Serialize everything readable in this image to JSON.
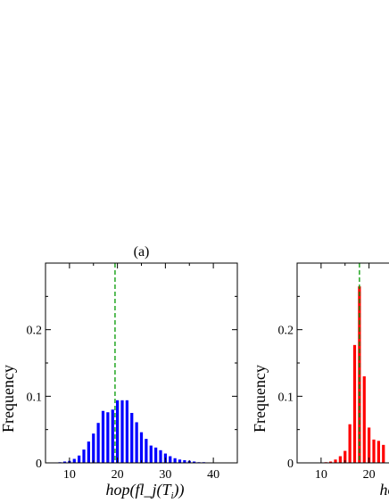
{
  "chart_data": [
    {
      "type": "bar",
      "panel_label": "(a)",
      "xlabel": "hop(fl_j(T",
      "xlabel_sub": "i",
      "xlabel_close": "))",
      "ylabel": "Frequency",
      "xlim": [
        5,
        45
      ],
      "ylim": [
        0,
        0.3
      ],
      "xticks": [
        10,
        20,
        30,
        40
      ],
      "yticks": [
        0,
        0.1,
        0.2
      ],
      "ytick_labels": [
        "0",
        "0.1",
        "0.2"
      ],
      "reference_line_x": 19.5,
      "bar_color": "#0000ff",
      "reference_line_color": "#009900",
      "x": [
        8,
        9,
        10,
        11,
        12,
        13,
        14,
        15,
        16,
        17,
        18,
        19,
        20,
        21,
        22,
        23,
        24,
        25,
        26,
        27,
        28,
        29,
        30,
        31,
        32,
        33,
        34,
        35,
        36,
        37,
        38,
        39,
        40
      ],
      "values": [
        0.001,
        0.002,
        0.003,
        0.006,
        0.011,
        0.02,
        0.032,
        0.044,
        0.06,
        0.078,
        0.076,
        0.08,
        0.094,
        0.094,
        0.094,
        0.075,
        0.061,
        0.046,
        0.036,
        0.026,
        0.023,
        0.019,
        0.014,
        0.01,
        0.007,
        0.005,
        0.004,
        0.003,
        0.002,
        0.001,
        0.001,
        0.0005,
        0.0005
      ]
    },
    {
      "type": "bar",
      "panel_label": "(",
      "xlabel": "hop(f",
      "xlabel_sub": "",
      "xlabel_close": "",
      "ylabel": "Frequency",
      "xlim": [
        5,
        45
      ],
      "ylim": [
        0,
        0.3
      ],
      "xticks": [
        10,
        20
      ],
      "yticks": [
        0,
        0.1,
        0.2
      ],
      "ytick_labels": [
        "0",
        "0.1",
        "0.2"
      ],
      "reference_line_x": 18,
      "bar_color": "#ff0000",
      "reference_line_color": "#009900",
      "x": [
        11,
        12,
        13,
        14,
        15,
        16,
        17,
        18,
        19,
        20,
        21,
        22,
        23
      ],
      "values": [
        0.001,
        0.002,
        0.005,
        0.01,
        0.018,
        0.058,
        0.177,
        0.265,
        0.13,
        0.053,
        0.035,
        0.033,
        0.027
      ]
    }
  ]
}
